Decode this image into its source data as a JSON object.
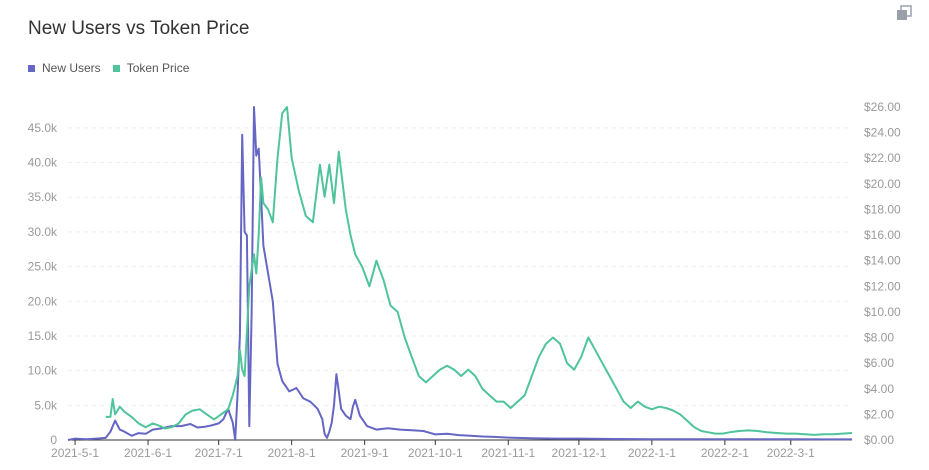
{
  "chart": {
    "title": "New Users vs Token Price"
  },
  "legend": {
    "items": [
      {
        "label": "New Users",
        "color": "#6666c4"
      },
      {
        "label": "Token Price",
        "color": "#4fc49b"
      }
    ]
  },
  "toolbar": {
    "icon": "copy-icon"
  },
  "chart_data": {
    "type": "line",
    "title": "New Users vs Token Price",
    "xlabel": "",
    "ylabel_left": "",
    "ylabel_right": "",
    "grid": true,
    "legend_position": "top-left",
    "x_ticks": [
      "2021-5-1",
      "2021-6-1",
      "2021-7-1",
      "2021-8-1",
      "2021-9-1",
      "2021-10-1",
      "2021-11-1",
      "2021-12-1",
      "2022-1-1",
      "2022-2-1",
      "2022-3-1"
    ],
    "y_left": {
      "range": [
        0,
        48000
      ],
      "ticks": [
        "0",
        "5.0k",
        "10.0k",
        "15.0k",
        "20.0k",
        "25.0k",
        "30.0k",
        "35.0k",
        "40.0k",
        "45.0k"
      ],
      "tick_values": [
        0,
        5000,
        10000,
        15000,
        20000,
        25000,
        30000,
        35000,
        40000,
        45000
      ]
    },
    "y_right": {
      "range": [
        0,
        26
      ],
      "ticks": [
        "$0.00",
        "$2.00",
        "$4.00",
        "$6.00",
        "$8.00",
        "$10.00",
        "$12.00",
        "$14.00",
        "$16.00",
        "$18.00",
        "$20.00",
        "$22.00",
        "$24.00",
        "$26.00"
      ],
      "tick_values": [
        0,
        2,
        4,
        6,
        8,
        10,
        12,
        14,
        16,
        18,
        20,
        22,
        24,
        26
      ]
    },
    "series": [
      {
        "name": "New Users",
        "axis": "left",
        "color": "#6666c4",
        "points": [
          [
            "2021-04-28",
            0
          ],
          [
            "2021-05-01",
            200
          ],
          [
            "2021-05-06",
            100
          ],
          [
            "2021-05-10",
            200
          ],
          [
            "2021-05-14",
            300
          ],
          [
            "2021-05-16",
            1200
          ],
          [
            "2021-05-18",
            2800
          ],
          [
            "2021-05-20",
            1500
          ],
          [
            "2021-05-22",
            1200
          ],
          [
            "2021-05-25",
            600
          ],
          [
            "2021-05-28",
            1000
          ],
          [
            "2021-05-31",
            900
          ],
          [
            "2021-06-03",
            1500
          ],
          [
            "2021-06-07",
            1700
          ],
          [
            "2021-06-11",
            2000
          ],
          [
            "2021-06-15",
            2000
          ],
          [
            "2021-06-19",
            2300
          ],
          [
            "2021-06-22",
            1800
          ],
          [
            "2021-06-25",
            1900
          ],
          [
            "2021-06-28",
            2100
          ],
          [
            "2021-07-01",
            2400
          ],
          [
            "2021-07-03",
            3000
          ],
          [
            "2021-07-05",
            4500
          ],
          [
            "2021-07-07",
            2500
          ],
          [
            "2021-07-08",
            0
          ],
          [
            "2021-07-09",
            6500
          ],
          [
            "2021-07-10",
            15000
          ],
          [
            "2021-07-11",
            44000
          ],
          [
            "2021-07-12",
            30000
          ],
          [
            "2021-07-13",
            29500
          ],
          [
            "2021-07-14",
            2000
          ],
          [
            "2021-07-15",
            18000
          ],
          [
            "2021-07-16",
            48000
          ],
          [
            "2021-07-17",
            41000
          ],
          [
            "2021-07-18",
            42000
          ],
          [
            "2021-07-19",
            35000
          ],
          [
            "2021-07-20",
            28000
          ],
          [
            "2021-07-22",
            24000
          ],
          [
            "2021-07-24",
            20000
          ],
          [
            "2021-07-26",
            11000
          ],
          [
            "2021-07-28",
            8500
          ],
          [
            "2021-07-31",
            7000
          ],
          [
            "2021-08-03",
            7500
          ],
          [
            "2021-08-06",
            6000
          ],
          [
            "2021-08-09",
            5500
          ],
          [
            "2021-08-12",
            4500
          ],
          [
            "2021-08-14",
            3000
          ],
          [
            "2021-08-15",
            900
          ],
          [
            "2021-08-16",
            300
          ],
          [
            "2021-08-17",
            1200
          ],
          [
            "2021-08-18",
            2500
          ],
          [
            "2021-08-19",
            5000
          ],
          [
            "2021-08-20",
            9500
          ],
          [
            "2021-08-21",
            7000
          ],
          [
            "2021-08-22",
            4500
          ],
          [
            "2021-08-24",
            3500
          ],
          [
            "2021-08-26",
            3000
          ],
          [
            "2021-08-27",
            4800
          ],
          [
            "2021-08-28",
            5800
          ],
          [
            "2021-08-30",
            3500
          ],
          [
            "2021-09-02",
            2000
          ],
          [
            "2021-09-06",
            1500
          ],
          [
            "2021-09-11",
            1700
          ],
          [
            "2021-09-16",
            1500
          ],
          [
            "2021-09-21",
            1400
          ],
          [
            "2021-09-26",
            1300
          ],
          [
            "2021-10-01",
            800
          ],
          [
            "2021-10-06",
            900
          ],
          [
            "2021-10-11",
            700
          ],
          [
            "2021-10-16",
            600
          ],
          [
            "2021-10-21",
            500
          ],
          [
            "2021-10-26",
            450
          ],
          [
            "2021-11-01",
            350
          ],
          [
            "2021-11-11",
            250
          ],
          [
            "2021-11-21",
            200
          ],
          [
            "2021-12-01",
            200
          ],
          [
            "2021-12-16",
            150
          ],
          [
            "2022-01-01",
            100
          ],
          [
            "2022-01-16",
            100
          ],
          [
            "2022-02-01",
            100
          ],
          [
            "2022-02-16",
            100
          ],
          [
            "2022-03-01",
            100
          ],
          [
            "2022-03-16",
            80
          ],
          [
            "2022-03-27",
            80
          ]
        ]
      },
      {
        "name": "Token Price",
        "axis": "right",
        "color": "#4fc49b",
        "points": [
          [
            "2021-05-14",
            1.8
          ],
          [
            "2021-05-16",
            1.8
          ],
          [
            "2021-05-17",
            3.2
          ],
          [
            "2021-05-18",
            2.0
          ],
          [
            "2021-05-20",
            2.6
          ],
          [
            "2021-05-22",
            2.2
          ],
          [
            "2021-05-25",
            1.8
          ],
          [
            "2021-05-28",
            1.3
          ],
          [
            "2021-05-31",
            1.0
          ],
          [
            "2021-06-03",
            1.3
          ],
          [
            "2021-06-06",
            1.1
          ],
          [
            "2021-06-08",
            0.9
          ],
          [
            "2021-06-11",
            1.0
          ],
          [
            "2021-06-14",
            1.3
          ],
          [
            "2021-06-17",
            2.0
          ],
          [
            "2021-06-20",
            2.3
          ],
          [
            "2021-06-23",
            2.4
          ],
          [
            "2021-06-26",
            2.0
          ],
          [
            "2021-06-29",
            1.6
          ],
          [
            "2021-07-02",
            2.0
          ],
          [
            "2021-07-05",
            2.4
          ],
          [
            "2021-07-07",
            3.5
          ],
          [
            "2021-07-09",
            5.0
          ],
          [
            "2021-07-10",
            7.0
          ],
          [
            "2021-07-11",
            5.5
          ],
          [
            "2021-07-12",
            5.0
          ],
          [
            "2021-07-14",
            12.0
          ],
          [
            "2021-07-16",
            14.5
          ],
          [
            "2021-07-17",
            13.0
          ],
          [
            "2021-07-18",
            16.0
          ],
          [
            "2021-07-19",
            20.5
          ],
          [
            "2021-07-20",
            18.5
          ],
          [
            "2021-07-22",
            18.0
          ],
          [
            "2021-07-24",
            17.0
          ],
          [
            "2021-07-26",
            22.0
          ],
          [
            "2021-07-28",
            25.5
          ],
          [
            "2021-07-30",
            26.0
          ],
          [
            "2021-08-01",
            22.0
          ],
          [
            "2021-08-04",
            19.5
          ],
          [
            "2021-08-07",
            17.5
          ],
          [
            "2021-08-10",
            17.0
          ],
          [
            "2021-08-13",
            21.5
          ],
          [
            "2021-08-15",
            19.0
          ],
          [
            "2021-08-17",
            21.5
          ],
          [
            "2021-08-19",
            18.5
          ],
          [
            "2021-08-21",
            22.5
          ],
          [
            "2021-08-24",
            18.0
          ],
          [
            "2021-08-26",
            16.0
          ],
          [
            "2021-08-28",
            14.5
          ],
          [
            "2021-08-31",
            13.5
          ],
          [
            "2021-09-03",
            12.0
          ],
          [
            "2021-09-06",
            14.0
          ],
          [
            "2021-09-09",
            12.5
          ],
          [
            "2021-09-12",
            10.5
          ],
          [
            "2021-09-15",
            10.0
          ],
          [
            "2021-09-18",
            8.0
          ],
          [
            "2021-09-21",
            6.5
          ],
          [
            "2021-09-24",
            5.0
          ],
          [
            "2021-09-27",
            4.5
          ],
          [
            "2021-09-30",
            5.0
          ],
          [
            "2021-10-03",
            5.5
          ],
          [
            "2021-10-06",
            5.8
          ],
          [
            "2021-10-09",
            5.5
          ],
          [
            "2021-10-12",
            5.0
          ],
          [
            "2021-10-15",
            5.5
          ],
          [
            "2021-10-18",
            5.0
          ],
          [
            "2021-10-21",
            4.0
          ],
          [
            "2021-10-24",
            3.5
          ],
          [
            "2021-10-27",
            3.0
          ],
          [
            "2021-10-30",
            3.0
          ],
          [
            "2021-11-02",
            2.5
          ],
          [
            "2021-11-05",
            3.0
          ],
          [
            "2021-11-08",
            3.5
          ],
          [
            "2021-11-11",
            5.0
          ],
          [
            "2021-11-14",
            6.5
          ],
          [
            "2021-11-17",
            7.5
          ],
          [
            "2021-11-20",
            8.0
          ],
          [
            "2021-11-23",
            7.5
          ],
          [
            "2021-11-26",
            6.0
          ],
          [
            "2021-11-29",
            5.5
          ],
          [
            "2021-12-02",
            6.5
          ],
          [
            "2021-12-05",
            8.0
          ],
          [
            "2021-12-08",
            7.0
          ],
          [
            "2021-12-11",
            6.0
          ],
          [
            "2021-12-14",
            5.0
          ],
          [
            "2021-12-17",
            4.0
          ],
          [
            "2021-12-20",
            3.0
          ],
          [
            "2021-12-23",
            2.5
          ],
          [
            "2021-12-26",
            3.0
          ],
          [
            "2021-12-29",
            2.6
          ],
          [
            "2022-01-01",
            2.4
          ],
          [
            "2022-01-04",
            2.6
          ],
          [
            "2022-01-07",
            2.5
          ],
          [
            "2022-01-10",
            2.3
          ],
          [
            "2022-01-13",
            2.0
          ],
          [
            "2022-01-16",
            1.5
          ],
          [
            "2022-01-19",
            1.0
          ],
          [
            "2022-01-22",
            0.7
          ],
          [
            "2022-01-25",
            0.6
          ],
          [
            "2022-01-28",
            0.5
          ],
          [
            "2022-01-31",
            0.5
          ],
          [
            "2022-02-03",
            0.6
          ],
          [
            "2022-02-07",
            0.7
          ],
          [
            "2022-02-11",
            0.75
          ],
          [
            "2022-02-15",
            0.7
          ],
          [
            "2022-02-19",
            0.6
          ],
          [
            "2022-02-23",
            0.55
          ],
          [
            "2022-02-27",
            0.5
          ],
          [
            "2022-03-03",
            0.5
          ],
          [
            "2022-03-07",
            0.45
          ],
          [
            "2022-03-11",
            0.4
          ],
          [
            "2022-03-15",
            0.45
          ],
          [
            "2022-03-19",
            0.45
          ],
          [
            "2022-03-23",
            0.5
          ],
          [
            "2022-03-27",
            0.55
          ]
        ]
      }
    ]
  }
}
